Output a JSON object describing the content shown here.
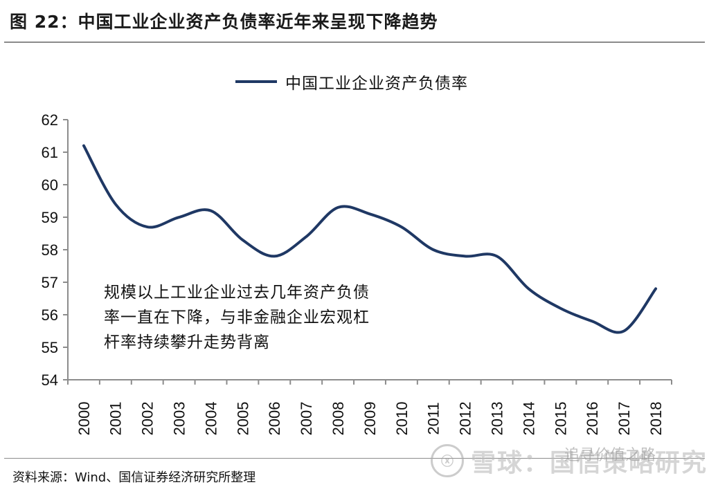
{
  "figure": {
    "title": "图 22：中国工业企业资产负债率近年来呈现下降趋势",
    "source": "资料来源：Wind、国信证券经济研究所整理"
  },
  "annotation": {
    "lines": [
      "规模以上工业企业过去几年资产负债",
      "率一直在下降，与非金融企业宏观杠",
      "杆率持续攀升走势背离"
    ]
  },
  "watermark": {
    "logo": "ⓧ",
    "text": "雪球：国信策略研究",
    "sub": "追寻价值之路"
  },
  "colors": {
    "series": "#1f3864",
    "axis": "#8c8c8c"
  },
  "chart_data": {
    "type": "line",
    "title": "",
    "xlabel": "",
    "ylabel": "",
    "ylim": [
      54,
      62
    ],
    "yticks": [
      54,
      55,
      56,
      57,
      58,
      59,
      60,
      61,
      62
    ],
    "legend": "top-center",
    "grid": false,
    "x": [
      "2000",
      "2001",
      "2002",
      "2003",
      "2004",
      "2005",
      "2006",
      "2007",
      "2008",
      "2009",
      "2010",
      "2011",
      "2012",
      "2013",
      "2014",
      "2015",
      "2016",
      "2017",
      "2018"
    ],
    "series": [
      {
        "name": "中国工业企业资产负债率",
        "values": [
          61.2,
          59.4,
          58.7,
          59.0,
          59.2,
          58.3,
          57.8,
          58.4,
          59.3,
          59.1,
          58.7,
          58.0,
          57.8,
          57.8,
          56.8,
          56.2,
          55.8,
          55.5,
          56.8
        ]
      }
    ]
  }
}
